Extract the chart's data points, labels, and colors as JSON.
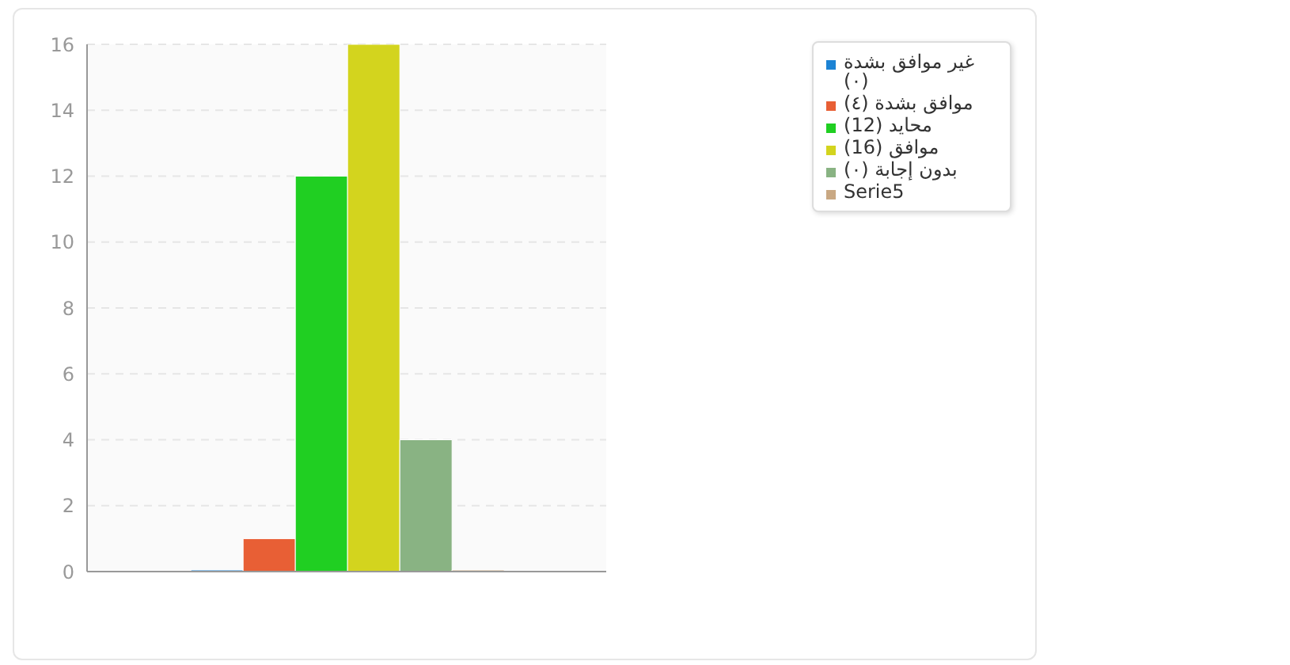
{
  "chart_data": {
    "type": "bar",
    "categories": [
      null
    ],
    "series": [
      {
        "name": "غير موافق بشدة (٠)",
        "color": "#1c83d4",
        "values": [
          0
        ]
      },
      {
        "name": "موافق بشدة (٤)",
        "color": "#e85f35",
        "values": [
          1
        ]
      },
      {
        "name": "محايد (12)",
        "color": "#20cf22",
        "values": [
          12
        ]
      },
      {
        "name": "موافق (16)",
        "color": "#d3d41e",
        "values": [
          16
        ]
      },
      {
        "name": "بدون إجابة (٠)",
        "color": "#89b383",
        "values": [
          4
        ]
      },
      {
        "name": "Serie5",
        "color": "#c9a883",
        "values": [
          0
        ]
      }
    ],
    "ylim": [
      0,
      16
    ],
    "yticks": [
      0,
      2,
      4,
      6,
      8,
      10,
      12,
      14,
      16
    ],
    "grid": "y",
    "legend": "top right"
  }
}
